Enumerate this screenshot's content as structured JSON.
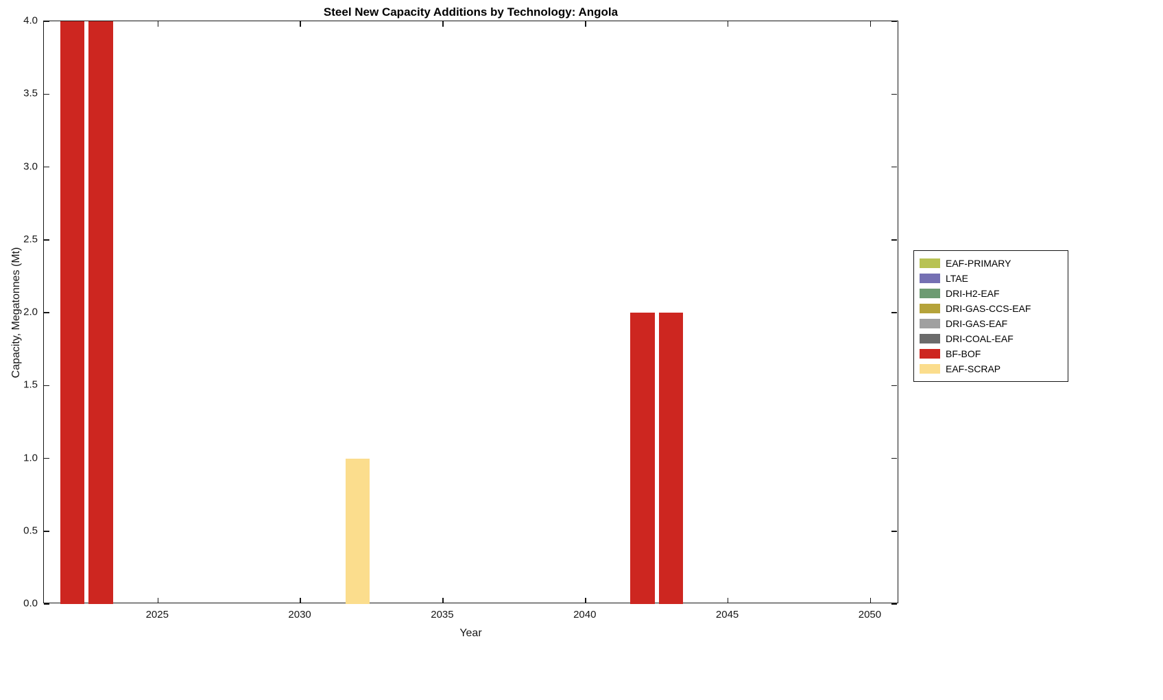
{
  "chart_data": {
    "type": "bar",
    "title": "Steel New Capacity Additions by Technology: Angola",
    "xlabel": "Year",
    "ylabel": "Capacity, Megatonnes (Mt)",
    "xlim": [
      2021,
      2051
    ],
    "ylim": [
      0,
      4
    ],
    "xtick_labels": [
      "2025",
      "2030",
      "2035",
      "2040",
      "2045",
      "2050"
    ],
    "ytick_labels": [
      "0.0",
      "0.5",
      "1.0",
      "1.5",
      "2.0",
      "2.5",
      "3.0",
      "3.5",
      "4.0"
    ],
    "grid": false,
    "legend_position": "right-outside",
    "bar_width_years": 0.85,
    "legend": [
      {
        "name": "EAF-PRIMARY",
        "color": "#b8c254"
      },
      {
        "name": "LTAE",
        "color": "#7570b3"
      },
      {
        "name": "DRI-H2-EAF",
        "color": "#6d9b72"
      },
      {
        "name": "DRI-GAS-CCS-EAF",
        "color": "#b5a33a"
      },
      {
        "name": "DRI-GAS-EAF",
        "color": "#a0a0a0"
      },
      {
        "name": "DRI-COAL-EAF",
        "color": "#6b6b6b"
      },
      {
        "name": "BF-BOF",
        "color": "#cd2620"
      },
      {
        "name": "EAF-SCRAP",
        "color": "#fbdd8d"
      }
    ],
    "series": [
      {
        "name": "BF-BOF",
        "color": "#cd2620",
        "points": [
          {
            "x": 2022,
            "y": 4.0
          },
          {
            "x": 2023,
            "y": 4.0
          },
          {
            "x": 2042,
            "y": 2.0
          },
          {
            "x": 2043,
            "y": 2.0
          }
        ]
      },
      {
        "name": "EAF-SCRAP",
        "color": "#fbdd8d",
        "points": [
          {
            "x": 2032,
            "y": 1.0
          }
        ]
      }
    ]
  }
}
